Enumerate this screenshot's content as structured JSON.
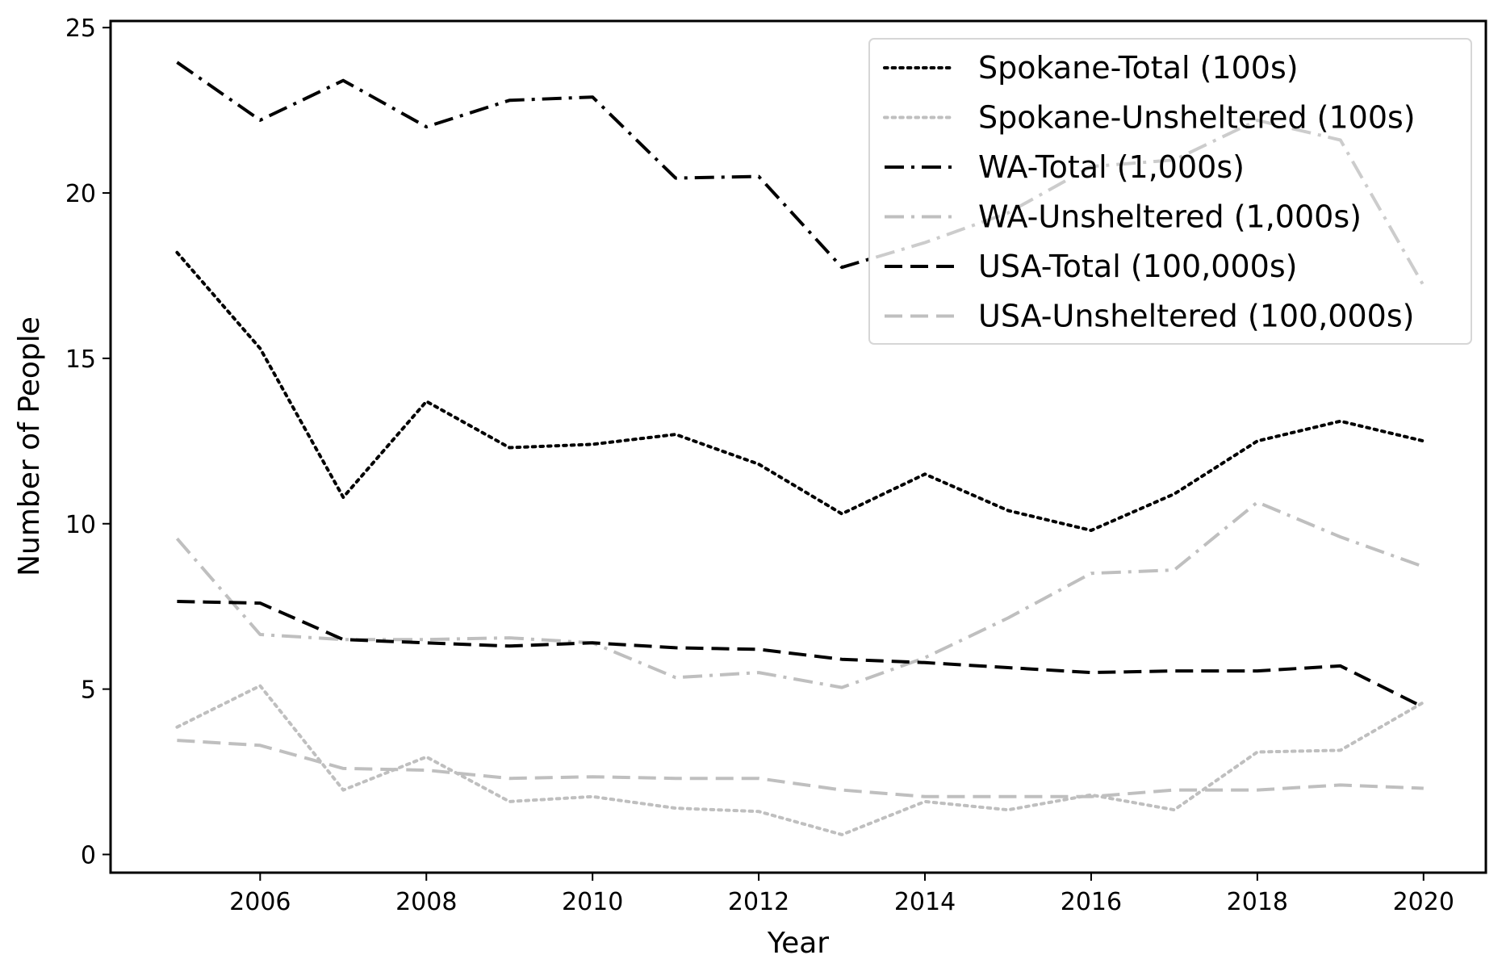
{
  "chart_data": {
    "type": "line",
    "title": "",
    "xlabel": "Year",
    "ylabel": "Number of People",
    "xlim": [
      2004.2,
      2020.75
    ],
    "ylim": [
      -0.55,
      25.2
    ],
    "x_ticks": [
      2006,
      2008,
      2010,
      2012,
      2014,
      2016,
      2018,
      2020
    ],
    "y_ticks": [
      0,
      5,
      10,
      15,
      20,
      25
    ],
    "grid": false,
    "legend_position": "top-right",
    "x": [
      2005,
      2006,
      2007,
      2008,
      2009,
      2010,
      2011,
      2012,
      2013,
      2014,
      2015,
      2016,
      2017,
      2018,
      2019,
      2020
    ],
    "series": [
      {
        "name": "Spokane-Total (100s)",
        "color": "#000000",
        "style": "dotted",
        "values": [
          18.2,
          15.3,
          10.8,
          13.7,
          12.3,
          12.4,
          12.7,
          11.8,
          10.3,
          11.5,
          10.4,
          9.8,
          10.9,
          12.5,
          13.1,
          12.5
        ]
      },
      {
        "name": "Spokane-Unsheltered (100s)",
        "color": "#bfbfbf",
        "style": "dotted",
        "values": [
          3.85,
          5.1,
          1.95,
          2.95,
          1.6,
          1.75,
          1.4,
          1.3,
          0.6,
          1.6,
          1.35,
          1.8,
          1.35,
          3.1,
          3.15,
          4.6
        ]
      },
      {
        "name": "WA-Total (1,000s)",
        "color": "#000000",
        "style": "dashdot",
        "values": [
          23.95,
          22.2,
          23.4,
          22.0,
          22.8,
          22.9,
          20.45,
          20.5,
          17.75,
          18.5,
          19.4,
          20.8,
          21.0,
          22.2,
          21.6,
          17.2
        ]
      },
      {
        "name": "WA-Unsheltered (1,000s)",
        "color": "#bfbfbf",
        "style": "dashdot",
        "values": [
          9.55,
          6.65,
          6.5,
          6.5,
          6.55,
          6.4,
          5.35,
          5.5,
          5.05,
          5.95,
          7.15,
          8.5,
          8.6,
          10.65,
          9.6,
          8.7
        ]
      },
      {
        "name": "USA-Total (100,000s)",
        "color": "#000000",
        "style": "dashed",
        "values": [
          7.65,
          7.6,
          6.5,
          6.4,
          6.3,
          6.4,
          6.25,
          6.2,
          5.9,
          5.8,
          5.65,
          5.5,
          5.55,
          5.55,
          5.7,
          4.45
        ]
      },
      {
        "name": "USA-Unsheltered (100,000s)",
        "color": "#bfbfbf",
        "style": "dashed",
        "values": [
          3.45,
          3.3,
          2.6,
          2.55,
          2.3,
          2.35,
          2.3,
          2.3,
          1.95,
          1.75,
          1.75,
          1.75,
          1.95,
          1.95,
          2.1,
          2.0
        ]
      }
    ]
  }
}
